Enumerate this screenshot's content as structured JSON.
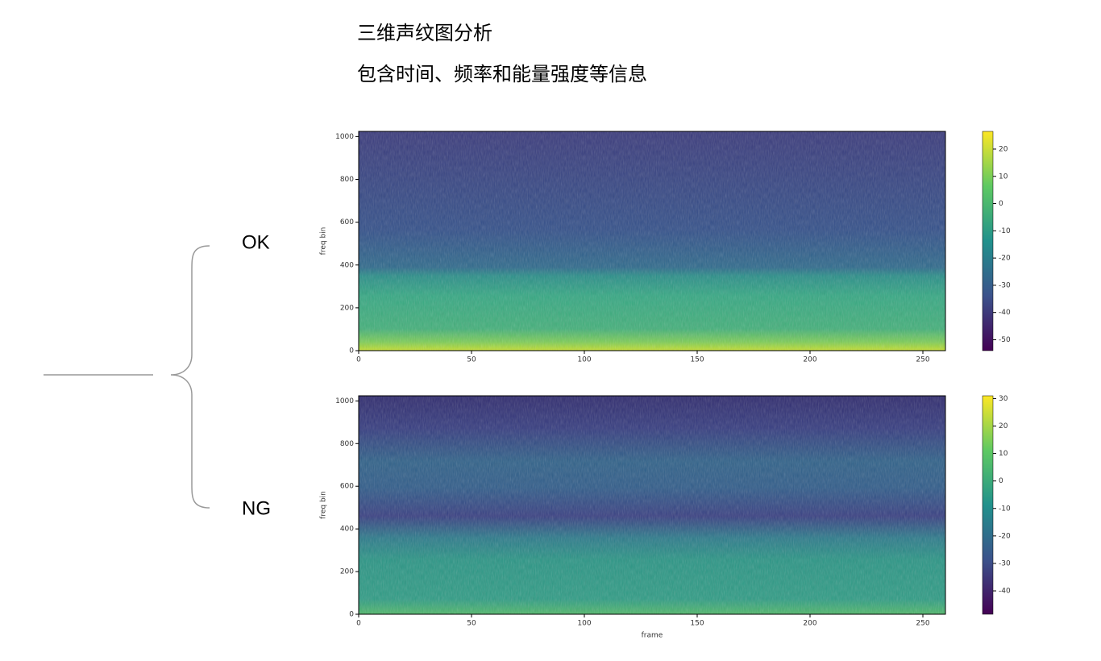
{
  "header": {
    "title": "三维声纹图分析",
    "subtitle": "包含时间、频率和能量强度等信息"
  },
  "labels": [
    "OK",
    "NG"
  ],
  "chart_data": [
    {
      "type": "heatmap",
      "colormap": "viridis",
      "ylabel": "freq bin",
      "xlim": [
        0,
        260
      ],
      "ylim": [
        0,
        1024
      ],
      "xticks": [
        0,
        50,
        100,
        150,
        200,
        250
      ],
      "yticks": [
        0,
        200,
        400,
        600,
        800,
        1000
      ],
      "clim": [
        -54,
        26.5
      ],
      "cticks": [
        20,
        10,
        0,
        -10,
        -20,
        -30,
        -40,
        -50
      ]
    },
    {
      "type": "heatmap",
      "colormap": "viridis",
      "xlabel": "frame",
      "ylabel": "freq bin",
      "xlim": [
        0,
        260
      ],
      "ylim": [
        0,
        1024
      ],
      "xticks": [
        0,
        50,
        100,
        150,
        200,
        250
      ],
      "yticks": [
        0,
        200,
        400,
        600,
        800,
        1000
      ],
      "clim": [
        -48.5,
        31
      ],
      "cticks": [
        30,
        20,
        10,
        0,
        -10,
        -20,
        -30,
        -40
      ]
    }
  ]
}
